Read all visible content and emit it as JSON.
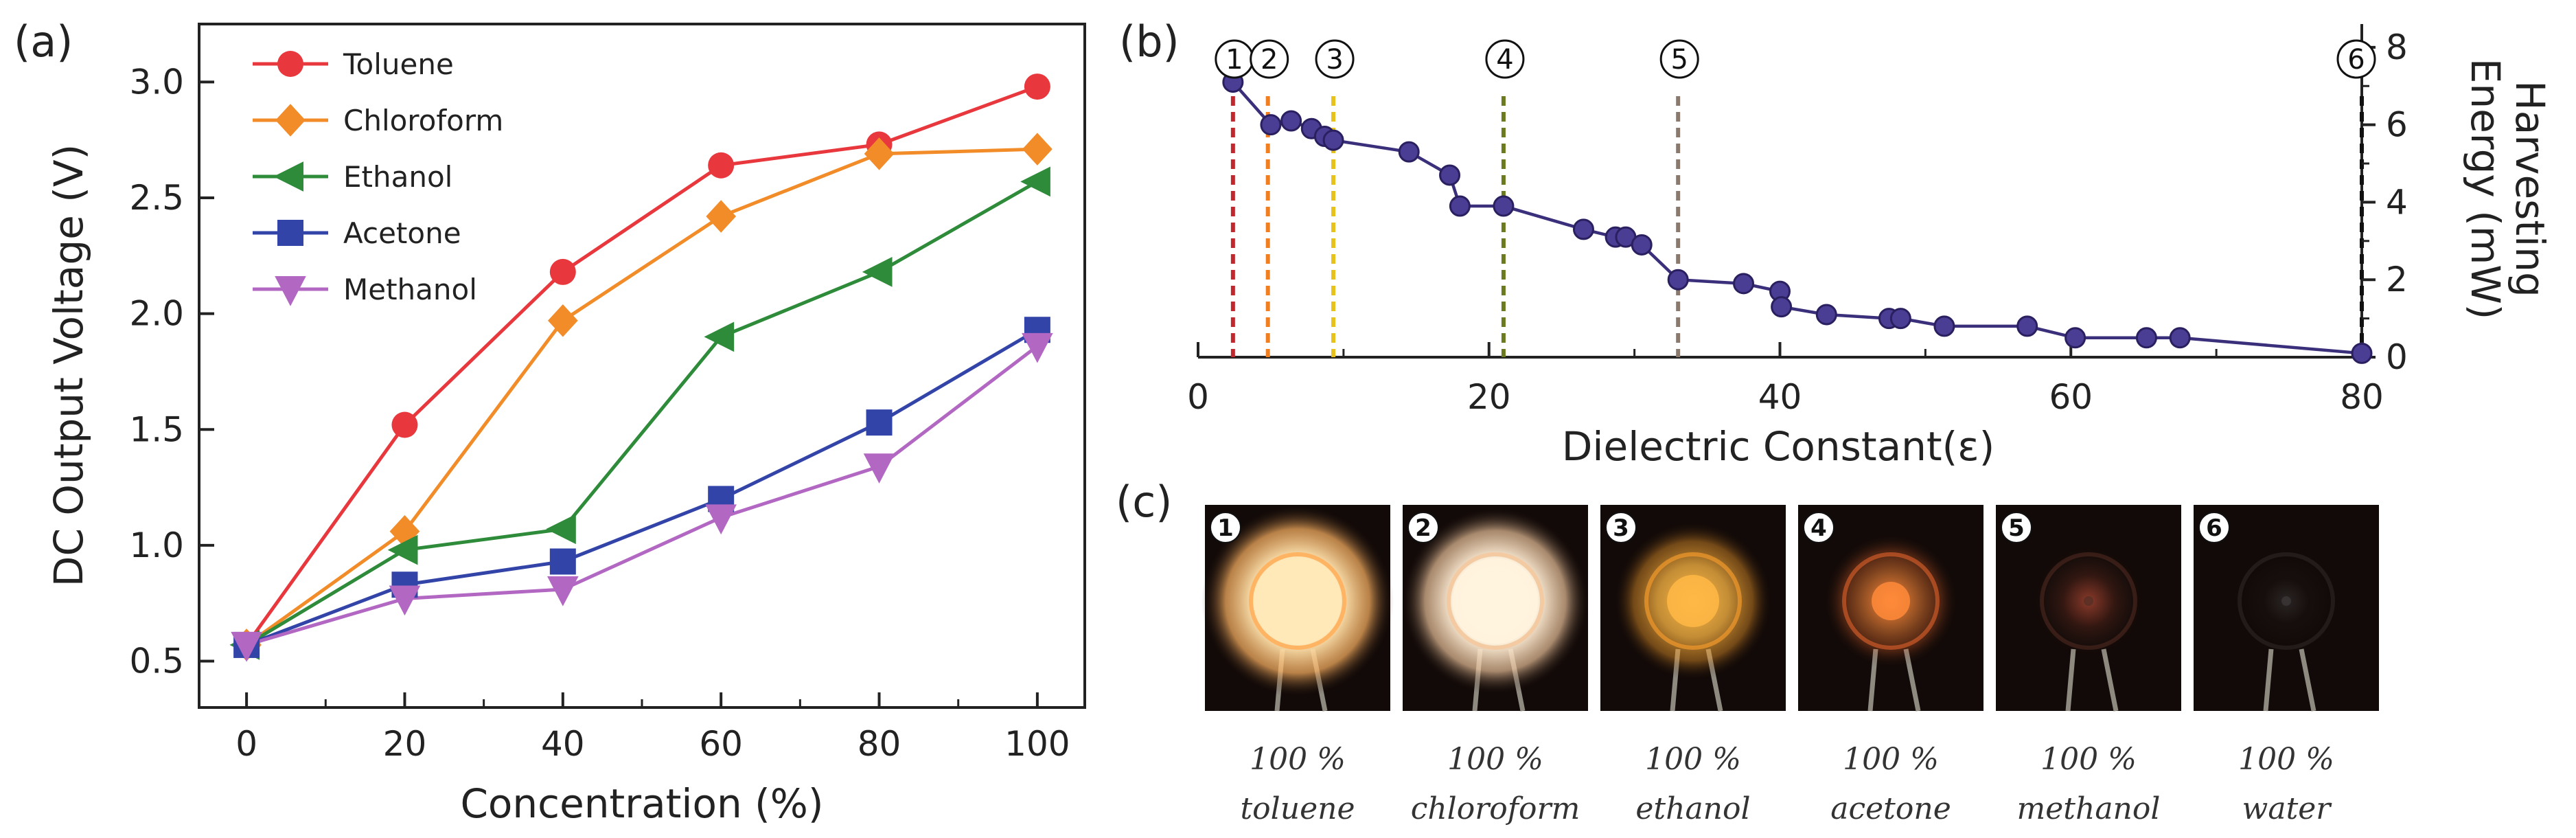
{
  "panels": {
    "a": "(a)",
    "b": "(b)",
    "c": "(c)"
  },
  "chart_data": [
    {
      "type": "line",
      "panel": "a",
      "xlabel": "Concentration (%)",
      "ylabel": "DC Output Voltage (V)",
      "x": [
        0,
        20,
        40,
        60,
        80,
        100
      ],
      "xticks": [
        "0",
        "20",
        "40",
        "60",
        "80",
        "100"
      ],
      "yticks": [
        "0.5",
        "1.0",
        "1.5",
        "2.0",
        "2.5",
        "3.0"
      ],
      "xlim": [
        -6,
        106
      ],
      "ylim": [
        0.3,
        3.25
      ],
      "legend_position": "top-left",
      "series": [
        {
          "name": "Toluene",
          "color": "#e8383d",
          "marker": "circle",
          "values": [
            0.57,
            1.52,
            2.18,
            2.64,
            2.73,
            2.98
          ]
        },
        {
          "name": "Chloroform",
          "color": "#f28c28",
          "marker": "diamond",
          "values": [
            0.57,
            1.06,
            1.97,
            2.42,
            2.69,
            2.71
          ]
        },
        {
          "name": "Ethanol",
          "color": "#2e8b3a",
          "marker": "triangle-left",
          "values": [
            0.57,
            0.98,
            1.07,
            1.9,
            2.18,
            2.57
          ]
        },
        {
          "name": "Acetone",
          "color": "#3344a8",
          "marker": "square",
          "values": [
            0.57,
            0.83,
            0.93,
            1.2,
            1.53,
            1.93
          ]
        },
        {
          "name": "Methanol",
          "color": "#b267c2",
          "marker": "triangle-down",
          "values": [
            0.57,
            0.77,
            0.81,
            1.12,
            1.34,
            1.86
          ]
        }
      ]
    },
    {
      "type": "line",
      "panel": "b",
      "xlabel": "Dielectric Constant(ε)",
      "ylabel": "Harvesting Energy (mW)",
      "ylabel_lines": [
        "Harvesting",
        "Energy (mW)"
      ],
      "xlim": [
        0,
        80
      ],
      "ylim": [
        0,
        8.6
      ],
      "xticks": [
        "0",
        "20",
        "40",
        "60",
        "80"
      ],
      "yticks": [
        "0",
        "2",
        "4",
        "6",
        "8"
      ],
      "y_axis_side": "right",
      "series": [
        {
          "name": "Harvesting Energy",
          "color": "#3a2f7a",
          "x": [
            2.4,
            5.0,
            6.4,
            7.8,
            8.7,
            9.3,
            14.5,
            17.3,
            18.0,
            21.0,
            26.5,
            28.7,
            29.4,
            30.5,
            33.0,
            37.5,
            40.0,
            40.1,
            43.2,
            47.5,
            48.3,
            51.3,
            57.0,
            60.3,
            65.2,
            67.5,
            80.0
          ],
          "y": [
            7.1,
            6.0,
            6.1,
            5.9,
            5.7,
            5.6,
            5.3,
            4.7,
            3.9,
            3.9,
            3.3,
            3.1,
            3.1,
            2.9,
            2.0,
            1.9,
            1.7,
            1.3,
            1.1,
            1.0,
            1.0,
            0.8,
            0.8,
            0.5,
            0.5,
            0.5,
            0.1
          ]
        }
      ],
      "markers": [
        {
          "label": "①",
          "x": 2.4,
          "color": "#c0282d"
        },
        {
          "label": "②",
          "x": 4.8,
          "color": "#f07f22"
        },
        {
          "label": "③",
          "x": 9.3,
          "color": "#e8c21c"
        },
        {
          "label": "④",
          "x": 21.0,
          "color": "#6b7a1e"
        },
        {
          "label": "⑤",
          "x": 33.0,
          "color": "#8a7a6e"
        },
        {
          "label": "⑥",
          "x": 80.0,
          "color": "#111111"
        }
      ]
    }
  ],
  "photos": [
    {
      "num": "1",
      "line1": "100 %",
      "line2": "toluene",
      "glow": "#ffe9b8",
      "rim": "#ffb463",
      "intensity": 1.0
    },
    {
      "num": "2",
      "line1": "100 %",
      "line2": "chloroform",
      "glow": "#fff3de",
      "rim": "#f3c9a0",
      "intensity": 0.95
    },
    {
      "num": "3",
      "line1": "100 %",
      "line2": "ethanol",
      "glow": "#ffb945",
      "rim": "#e8952a",
      "intensity": 0.65
    },
    {
      "num": "4",
      "line1": "100 %",
      "line2": "acetone",
      "glow": "#ff8a3a",
      "rim": "#d9602a",
      "intensity": 0.4
    },
    {
      "num": "5",
      "line1": "100 %",
      "line2": "methanol",
      "glow": "#8a3a2a",
      "rim": "#5a3026",
      "intensity": 0.18
    },
    {
      "num": "6",
      "line1": "100 %",
      "line2": "water",
      "glow": "#2a2424",
      "rim": "#3a3434",
      "intensity": 0.05
    }
  ]
}
